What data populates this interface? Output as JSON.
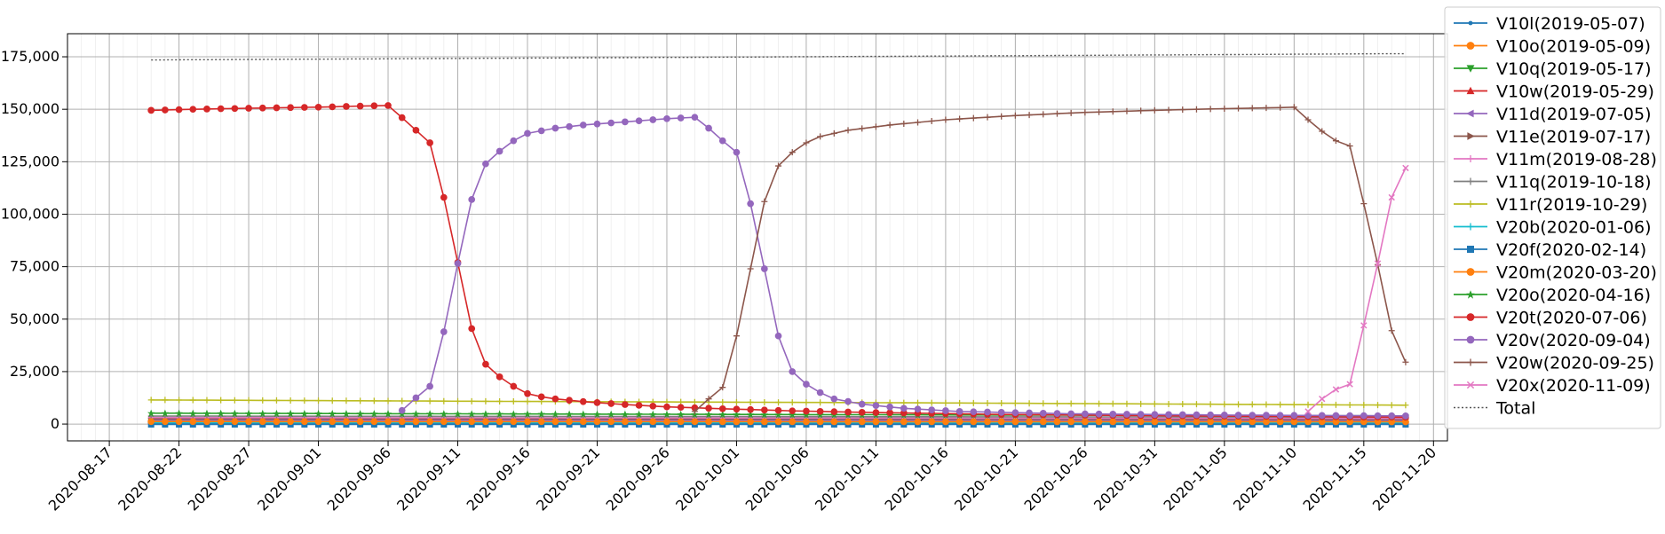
{
  "chart_data": {
    "type": "line",
    "title": "",
    "xlabel": "",
    "ylabel": "",
    "x_start": "2020-08-20",
    "x_end": "2020-11-18",
    "xlim": [
      "2020-08-14",
      "2020-11-21"
    ],
    "ylim": [
      -8000,
      186000
    ],
    "x_ticks": [
      "2020-08-17",
      "2020-08-22",
      "2020-08-27",
      "2020-09-01",
      "2020-09-06",
      "2020-09-11",
      "2020-09-16",
      "2020-09-21",
      "2020-09-26",
      "2020-10-01",
      "2020-10-06",
      "2020-10-11",
      "2020-10-16",
      "2020-10-21",
      "2020-10-26",
      "2020-10-31",
      "2020-11-05",
      "2020-11-10",
      "2020-11-15",
      "2020-11-20"
    ],
    "y_ticks": [
      0,
      25000,
      50000,
      75000,
      100000,
      125000,
      150000,
      175000
    ],
    "y_tick_labels": [
      "0",
      "25,000",
      "50,000",
      "75,000",
      "100,000",
      "125,000",
      "150,000",
      "175,000"
    ],
    "grid": true,
    "legend_position": "right-outside",
    "series": [
      {
        "name": "V10l(2019-05-07)",
        "color": "#1f77b4",
        "marker": "point",
        "points": [
          [
            "2020-08-20",
            300
          ],
          [
            "2020-11-18",
            300
          ]
        ]
      },
      {
        "name": "V10o(2019-05-09)",
        "color": "#ff7f0e",
        "marker": "circle",
        "points": [
          [
            "2020-08-20",
            900
          ],
          [
            "2020-11-18",
            900
          ]
        ]
      },
      {
        "name": "V10q(2019-05-17)",
        "color": "#2ca02c",
        "marker": "triangle-down",
        "points": [
          [
            "2020-08-20",
            1600
          ],
          [
            "2020-11-18",
            1500
          ]
        ]
      },
      {
        "name": "V10w(2019-05-29)",
        "color": "#d62728",
        "marker": "triangle-up",
        "points": [
          [
            "2020-08-20",
            2300
          ],
          [
            "2020-11-18",
            2100
          ]
        ]
      },
      {
        "name": "V11d(2019-07-05)",
        "color": "#9467bd",
        "marker": "triangle-left",
        "points": [
          [
            "2020-08-20",
            1900
          ],
          [
            "2020-11-18",
            1700
          ]
        ]
      },
      {
        "name": "V11e(2019-07-17)",
        "color": "#8c564b",
        "marker": "triangle-right",
        "points": [
          [
            "2020-08-20",
            2600
          ],
          [
            "2020-11-18",
            2400
          ]
        ]
      },
      {
        "name": "V11m(2019-08-28)",
        "color": "#e377c2",
        "marker": "tri-down",
        "points": [
          [
            "2020-08-20",
            3100
          ],
          [
            "2020-11-18",
            2700
          ]
        ]
      },
      {
        "name": "V11q(2019-10-18)",
        "color": "#7f7f7f",
        "marker": "tri-up",
        "points": [
          [
            "2020-08-20",
            3800
          ],
          [
            "2020-11-18",
            3300
          ]
        ]
      },
      {
        "name": "V11r(2019-10-29)",
        "color": "#bcbd22",
        "marker": "tri-left",
        "points": [
          [
            "2020-08-20",
            11500
          ],
          [
            "2020-09-15",
            10800
          ],
          [
            "2020-10-15",
            10100
          ],
          [
            "2020-11-18",
            9000
          ]
        ]
      },
      {
        "name": "V20b(2020-01-06)",
        "color": "#17becf",
        "marker": "tri-right",
        "points": [
          [
            "2020-08-20",
            700
          ],
          [
            "2020-11-18",
            700
          ]
        ]
      },
      {
        "name": "V20f(2020-02-14)",
        "color": "#1f77b4",
        "marker": "square",
        "points": [
          [
            "2020-08-20",
            -200
          ],
          [
            "2020-11-18",
            -200
          ]
        ]
      },
      {
        "name": "V20m(2020-03-20)",
        "color": "#ff7f0e",
        "marker": "circle",
        "points": [
          [
            "2020-08-20",
            1200
          ],
          [
            "2020-11-18",
            1100
          ]
        ]
      },
      {
        "name": "V20o(2020-04-16)",
        "color": "#2ca02c",
        "marker": "star",
        "points": [
          [
            "2020-08-20",
            5200
          ],
          [
            "2020-11-18",
            3900
          ]
        ]
      },
      {
        "name": "V20t(2020-07-06)",
        "color": "#d62728",
        "marker": "hexagon",
        "points": [
          [
            "2020-08-20",
            149500
          ],
          [
            "2020-08-23",
            150000
          ],
          [
            "2020-08-27",
            150500
          ],
          [
            "2020-09-01",
            151000
          ],
          [
            "2020-09-04",
            151500
          ],
          [
            "2020-09-06",
            151800
          ],
          [
            "2020-09-07",
            146000
          ],
          [
            "2020-09-08",
            140000
          ],
          [
            "2020-09-09",
            134000
          ],
          [
            "2020-09-10",
            108000
          ],
          [
            "2020-09-11",
            77000
          ],
          [
            "2020-09-12",
            45500
          ],
          [
            "2020-09-13",
            28500
          ],
          [
            "2020-09-14",
            22500
          ],
          [
            "2020-09-15",
            18000
          ],
          [
            "2020-09-16",
            14500
          ],
          [
            "2020-09-17",
            13000
          ],
          [
            "2020-09-18",
            12000
          ],
          [
            "2020-09-20",
            10700
          ],
          [
            "2020-09-23",
            9300
          ],
          [
            "2020-09-26",
            8200
          ],
          [
            "2020-09-30",
            7300
          ],
          [
            "2020-10-05",
            6300
          ],
          [
            "2020-10-10",
            5600
          ],
          [
            "2020-10-20",
            4600
          ],
          [
            "2020-10-31",
            4000
          ],
          [
            "2020-11-10",
            3600
          ],
          [
            "2020-11-18",
            3300
          ]
        ]
      },
      {
        "name": "V20v(2020-09-04)",
        "color": "#9467bd",
        "marker": "hexagon",
        "points": [
          [
            "2020-09-07",
            6500
          ],
          [
            "2020-09-08",
            12500
          ],
          [
            "2020-09-09",
            18000
          ],
          [
            "2020-09-10",
            44000
          ],
          [
            "2020-09-11",
            76500
          ],
          [
            "2020-09-12",
            107000
          ],
          [
            "2020-09-13",
            124000
          ],
          [
            "2020-09-14",
            130000
          ],
          [
            "2020-09-15",
            135000
          ],
          [
            "2020-09-16",
            138500
          ],
          [
            "2020-09-18",
            141000
          ],
          [
            "2020-09-20",
            142500
          ],
          [
            "2020-09-23",
            144000
          ],
          [
            "2020-09-26",
            145500
          ],
          [
            "2020-09-28",
            146200
          ],
          [
            "2020-09-29",
            141000
          ],
          [
            "2020-09-30",
            135000
          ],
          [
            "2020-10-01",
            129500
          ],
          [
            "2020-10-02",
            105000
          ],
          [
            "2020-10-03",
            74000
          ],
          [
            "2020-10-04",
            42000
          ],
          [
            "2020-10-05",
            25000
          ],
          [
            "2020-10-06",
            19000
          ],
          [
            "2020-10-07",
            15000
          ],
          [
            "2020-10-08",
            12000
          ],
          [
            "2020-10-10",
            9500
          ],
          [
            "2020-10-13",
            7500
          ],
          [
            "2020-10-17",
            6000
          ],
          [
            "2020-10-25",
            4900
          ],
          [
            "2020-11-05",
            4300
          ],
          [
            "2020-11-18",
            3900
          ]
        ]
      },
      {
        "name": "V20w(2020-09-25)",
        "color": "#8c564b",
        "marker": "plus",
        "points": [
          [
            "2020-09-28",
            6000
          ],
          [
            "2020-09-29",
            12000
          ],
          [
            "2020-09-30",
            17500
          ],
          [
            "2020-10-01",
            42000
          ],
          [
            "2020-10-02",
            74000
          ],
          [
            "2020-10-03",
            106000
          ],
          [
            "2020-10-04",
            123000
          ],
          [
            "2020-10-05",
            129500
          ],
          [
            "2020-10-06",
            134000
          ],
          [
            "2020-10-07",
            137000
          ],
          [
            "2020-10-09",
            140000
          ],
          [
            "2020-10-12",
            142500
          ],
          [
            "2020-10-16",
            145000
          ],
          [
            "2020-10-21",
            147000
          ],
          [
            "2020-10-26",
            148500
          ],
          [
            "2020-10-31",
            149500
          ],
          [
            "2020-11-05",
            150300
          ],
          [
            "2020-11-09",
            150800
          ],
          [
            "2020-11-10",
            151000
          ],
          [
            "2020-11-11",
            145000
          ],
          [
            "2020-11-12",
            139500
          ],
          [
            "2020-11-13",
            135000
          ],
          [
            "2020-11-14",
            132500
          ],
          [
            "2020-11-15",
            105000
          ],
          [
            "2020-11-16",
            76000
          ],
          [
            "2020-11-17",
            44500
          ],
          [
            "2020-11-18",
            29500
          ]
        ]
      },
      {
        "name": "V20x(2020-11-09)",
        "color": "#e377c2",
        "marker": "x",
        "points": [
          [
            "2020-11-11",
            6000
          ],
          [
            "2020-11-12",
            12000
          ],
          [
            "2020-11-13",
            16500
          ],
          [
            "2020-11-14",
            19000
          ],
          [
            "2020-11-15",
            47000
          ],
          [
            "2020-11-16",
            76500
          ],
          [
            "2020-11-17",
            108000
          ],
          [
            "2020-11-18",
            122000
          ]
        ]
      },
      {
        "name": "Total",
        "color": "#555555",
        "marker": "none",
        "dashed": true,
        "points": [
          [
            "2020-08-20",
            173500
          ],
          [
            "2020-09-20",
            174500
          ],
          [
            "2020-10-20",
            175500
          ],
          [
            "2020-11-18",
            176500
          ]
        ]
      }
    ]
  }
}
